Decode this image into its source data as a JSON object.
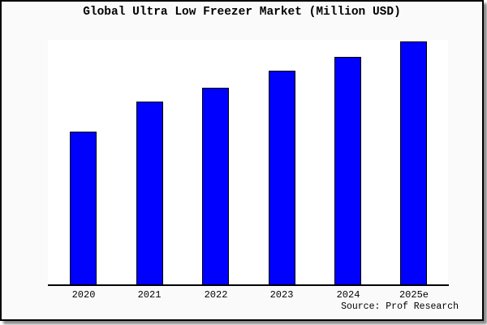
{
  "header": {
    "title": "Global Ultra Low Freezer Market (Million USD)"
  },
  "footer": {
    "source": "Source: Prof Research"
  },
  "chart_data": {
    "type": "bar",
    "title": "Global Ultra Low Freezer Market (Million USD)",
    "categories": [
      "2020",
      "2021",
      "2022",
      "2023",
      "2024",
      "2025e"
    ],
    "values": [
      189,
      226,
      243,
      264,
      281,
      300
    ],
    "values_unit": "relative bar height in px; no numeric y-axis, gridlines or data labels are shown in the chart",
    "xlabel": "",
    "ylabel": "",
    "ylim": [
      0,
      302
    ],
    "grid": false,
    "legend": false,
    "y_axis_shown": false,
    "source": "Source: Prof Research",
    "colors": {
      "bar_fill": "#0000ff",
      "bar_border": "#000000",
      "background": "#fafafa",
      "plot_background": "#ffffff",
      "axis": "#000000",
      "frame_border": "#000000",
      "shadow": "#8a8a8a",
      "text": "#000000"
    }
  }
}
